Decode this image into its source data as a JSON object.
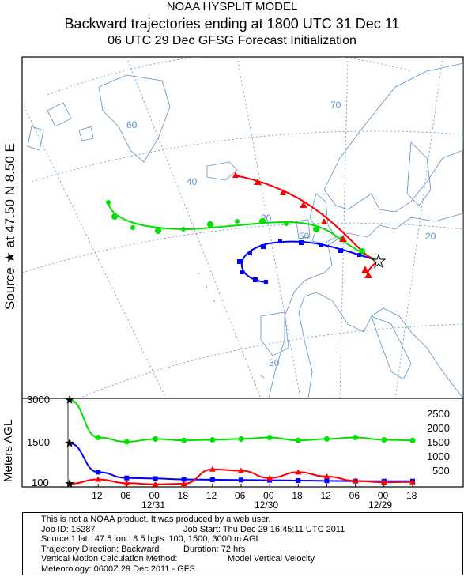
{
  "header": {
    "line1": "NOAA HYSPLIT MODEL",
    "line2": "Backward trajectories ending at 1800 UTC 31 Dec 11",
    "line3": "06 UTC 29 Dec    GFSG  Forecast Initialization"
  },
  "source_label": {
    "text": "Source ★ at    47.50 N    8.50 E"
  },
  "map": {
    "lat_labels": [
      "60",
      "70",
      "40",
      "20",
      "50",
      "20",
      "30"
    ],
    "colors": {
      "red": "#ff0000",
      "blue": "#0000ff",
      "green": "#00e000",
      "map_lines": "#5b8fc7"
    }
  },
  "chart_data": {
    "type": "line",
    "ylabel": "Meters AGL",
    "left_ticks": [
      "3000",
      "1500",
      "100"
    ],
    "right_ticks": [
      "2500",
      "2000",
      "1500",
      "1000",
      "500"
    ],
    "hour_ticks": [
      "12",
      "06",
      "00",
      "18",
      "12",
      "06",
      "00",
      "18",
      "12",
      "06",
      "00",
      "18"
    ],
    "date_labels": [
      "12/31",
      "12/30",
      "12/29"
    ],
    "x_hours_before_end": [
      0,
      6,
      12,
      18,
      24,
      30,
      36,
      42,
      48,
      54,
      60,
      66,
      72
    ],
    "series": [
      {
        "color": "#00e000",
        "start_height": 3000,
        "values": [
          3000,
          1700,
          1550,
          1650,
          1600,
          1620,
          1650,
          1700,
          1600,
          1650,
          1700,
          1620,
          1600
        ]
      },
      {
        "color": "#0000ff",
        "start_height": 1500,
        "values": [
          1500,
          500,
          300,
          280,
          250,
          240,
          230,
          220,
          210,
          200,
          190,
          190,
          190
        ]
      },
      {
        "color": "#ff0000",
        "start_height": 100,
        "values": [
          100,
          250,
          120,
          80,
          100,
          600,
          550,
          300,
          500,
          350,
          200,
          150,
          160
        ]
      }
    ]
  },
  "info": {
    "line1": "This is not a NOAA product. It was produced by a web user.",
    "job_id": "Job ID: 15287",
    "job_start": "Job Start: Thu Dec 29 16:45:11 UTC 2011",
    "source": "Source 1 lat.: 47.5  lon.: 8.5  hgts: 100, 1500, 3000 m AGL",
    "direction": "Trajectory Direction: Backward",
    "duration": "Duration: 72 hrs",
    "vertical": "Vertical Motion Calculation Method:",
    "vertical_value": "Model Vertical Velocity",
    "meteorology": "Meteorology: 0600Z 29 Dec 2011 - GFS"
  }
}
